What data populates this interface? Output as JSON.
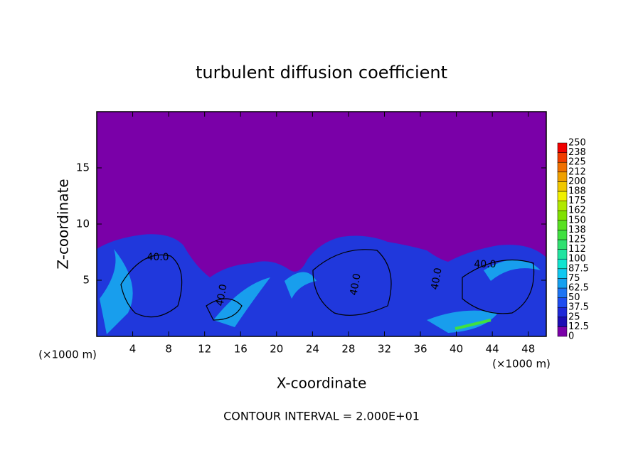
{
  "chart_data": {
    "type": "contour",
    "title": "turbulent diffusion coefficient",
    "xlabel": "X-coordinate",
    "ylabel": "Z-coordinate",
    "x_unit": "(×1000 m)",
    "footer": "CONTOUR INTERVAL = 2.000E+01",
    "xlim": [
      0,
      50
    ],
    "ylim": [
      0,
      20
    ],
    "xticks": [
      4,
      8,
      12,
      16,
      20,
      24,
      28,
      32,
      36,
      40,
      44,
      48
    ],
    "yticks": [
      5,
      10,
      15
    ],
    "background_color": "#7a00a8",
    "contour_labels": [
      "40.0",
      "40.0",
      "40.0",
      "40.0",
      "40.0"
    ],
    "colorbar": {
      "levels": [
        0,
        12.5,
        25,
        37.5,
        50,
        62.5,
        75,
        87.5,
        100,
        {
          "value": 112.5,
          "label": "112"
        },
        125,
        {
          "value": 137.5,
          "label": "138"
        },
        150,
        {
          "value": 162.5,
          "label": "162"
        },
        175,
        {
          "value": 187.5,
          "label": "188"
        },
        200,
        {
          "value": 212.5,
          "label": "212"
        },
        225,
        {
          "value": 237.5,
          "label": "238"
        },
        250
      ],
      "colors": [
        "#7a00a8",
        "#1c0cb4",
        "#1e28d8",
        "#1e4cf0",
        "#1c74f4",
        "#14a0f0",
        "#10c8f0",
        "#10e4d0",
        "#20e4a0",
        "#30e070",
        "#40e040",
        "#58e020",
        "#80e000",
        "#b0e800",
        "#f0f000",
        "#f0c800",
        "#f0a000",
        "#f07000",
        "#f03c00",
        "#f00000",
        "#f08080"
      ]
    }
  }
}
